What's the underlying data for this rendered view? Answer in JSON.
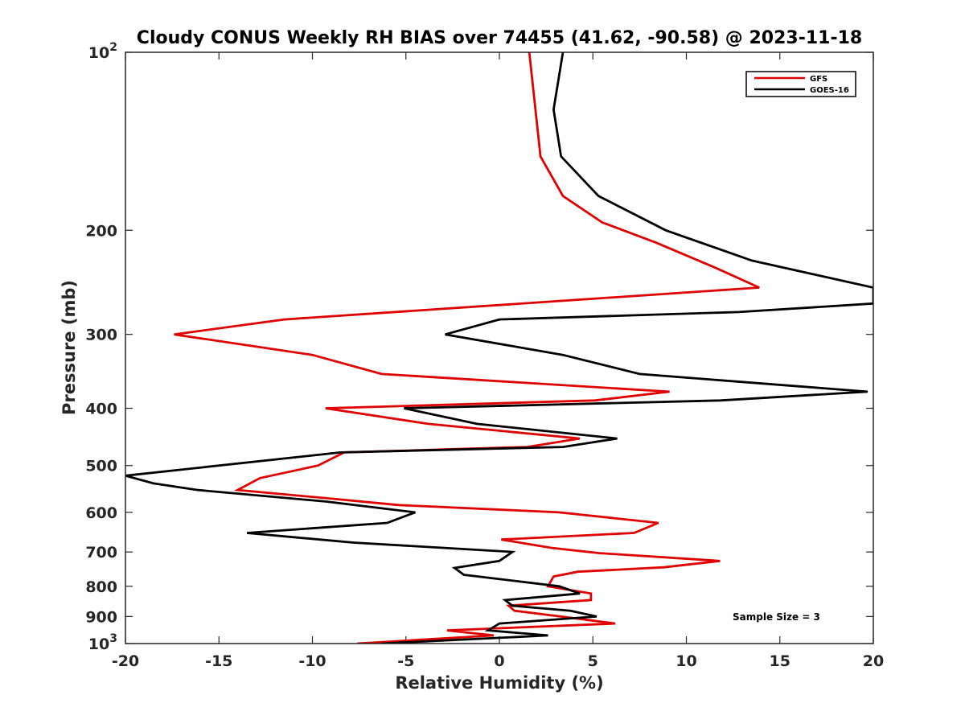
{
  "chart_data": {
    "type": "line",
    "title": "Cloudy CONUS Weekly RH BIAS over 74455 (41.62, -90.58) @ 2023-11-18",
    "xlabel": "Relative Humidity (%)",
    "ylabel": "Pressure (mb)",
    "xlim": [
      -20,
      20
    ],
    "ylim": [
      100,
      1000
    ],
    "yscale": "log",
    "y_reversed": true,
    "x_ticks": [
      -20,
      -15,
      -10,
      -5,
      0,
      5,
      10,
      15,
      20
    ],
    "x_tick_labels": [
      "-20",
      "-15",
      "-10",
      "-5",
      "0",
      "5",
      "10",
      "15",
      "20"
    ],
    "y_ticks": [
      100,
      200,
      300,
      400,
      500,
      600,
      700,
      800,
      900,
      1000
    ],
    "y_tick_labels": [
      {
        "base": "10",
        "exp": "2"
      },
      {
        "base": "200",
        "exp": ""
      },
      {
        "base": "300",
        "exp": ""
      },
      {
        "base": "400",
        "exp": ""
      },
      {
        "base": "500",
        "exp": ""
      },
      {
        "base": "600",
        "exp": ""
      },
      {
        "base": "700",
        "exp": ""
      },
      {
        "base": "800",
        "exp": ""
      },
      {
        "base": "900",
        "exp": ""
      },
      {
        "base": "10",
        "exp": "3"
      }
    ],
    "grid": false,
    "legend_position": "top-right",
    "annotation": "Sample Size = 3",
    "series": [
      {
        "name": "GFS",
        "color": "#e00000",
        "points": [
          [
            1.6,
            100
          ],
          [
            2.2,
            150
          ],
          [
            3.4,
            175
          ],
          [
            5.5,
            194
          ],
          [
            8.4,
            210
          ],
          [
            11.5,
            231
          ],
          [
            13.9,
            250
          ],
          [
            -11.5,
            283
          ],
          [
            -17.4,
            300
          ],
          [
            -10.0,
            325
          ],
          [
            -6.3,
            350
          ],
          [
            9.1,
            375
          ],
          [
            5.1,
            388
          ],
          [
            -9.3,
            400
          ],
          [
            -3.8,
            425
          ],
          [
            4.3,
            450
          ],
          [
            1.5,
            465
          ],
          [
            -8.3,
            475
          ],
          [
            -9.7,
            500
          ],
          [
            -12.8,
            525
          ],
          [
            -14.0,
            550
          ],
          [
            -9.2,
            568
          ],
          [
            -5.4,
            583
          ],
          [
            3.2,
            600
          ],
          [
            8.5,
            625
          ],
          [
            7.2,
            650
          ],
          [
            0.1,
            667
          ],
          [
            2.8,
            689
          ],
          [
            5.3,
            703
          ],
          [
            11.8,
            725
          ],
          [
            8.8,
            743
          ],
          [
            4.2,
            756
          ],
          [
            2.9,
            770
          ],
          [
            2.6,
            800
          ],
          [
            4.9,
            823
          ],
          [
            4.9,
            844
          ],
          [
            0.5,
            863
          ],
          [
            0.8,
            880
          ],
          [
            3.3,
            900
          ],
          [
            6.2,
            925
          ],
          [
            -2.8,
            950
          ],
          [
            -0.3,
            969
          ],
          [
            -7.6,
            1000
          ]
        ]
      },
      {
        "name": "GOES-16",
        "color": "#000000",
        "points": [
          [
            3.4,
            100
          ],
          [
            2.9,
            125
          ],
          [
            3.3,
            150
          ],
          [
            5.3,
            175
          ],
          [
            8.9,
            200
          ],
          [
            13.5,
            225
          ],
          [
            20.0,
            250
          ],
          [
            20.0,
            266
          ],
          [
            12.8,
            275
          ],
          [
            0.0,
            283
          ],
          [
            -2.9,
            300
          ],
          [
            3.4,
            325
          ],
          [
            7.5,
            350
          ],
          [
            19.7,
            375
          ],
          [
            11.8,
            388
          ],
          [
            -5.1,
            400
          ],
          [
            -1.2,
            425
          ],
          [
            6.3,
            450
          ],
          [
            3.4,
            465
          ],
          [
            -8.5,
            475
          ],
          [
            -20.0,
            520
          ],
          [
            -18.5,
            536
          ],
          [
            -16.1,
            550
          ],
          [
            -9.3,
            575
          ],
          [
            -4.5,
            600
          ],
          [
            -6.0,
            625
          ],
          [
            -13.5,
            650
          ],
          [
            -7.8,
            675
          ],
          [
            0.7,
            700
          ],
          [
            0.0,
            725
          ],
          [
            -2.4,
            745
          ],
          [
            -1.9,
            765
          ],
          [
            3.2,
            800
          ],
          [
            4.3,
            823
          ],
          [
            0.3,
            844
          ],
          [
            0.7,
            863
          ],
          [
            3.8,
            880
          ],
          [
            5.2,
            900
          ],
          [
            0.0,
            925
          ],
          [
            -0.6,
            950
          ],
          [
            2.6,
            969
          ],
          [
            -6.3,
            1000
          ]
        ]
      }
    ]
  }
}
